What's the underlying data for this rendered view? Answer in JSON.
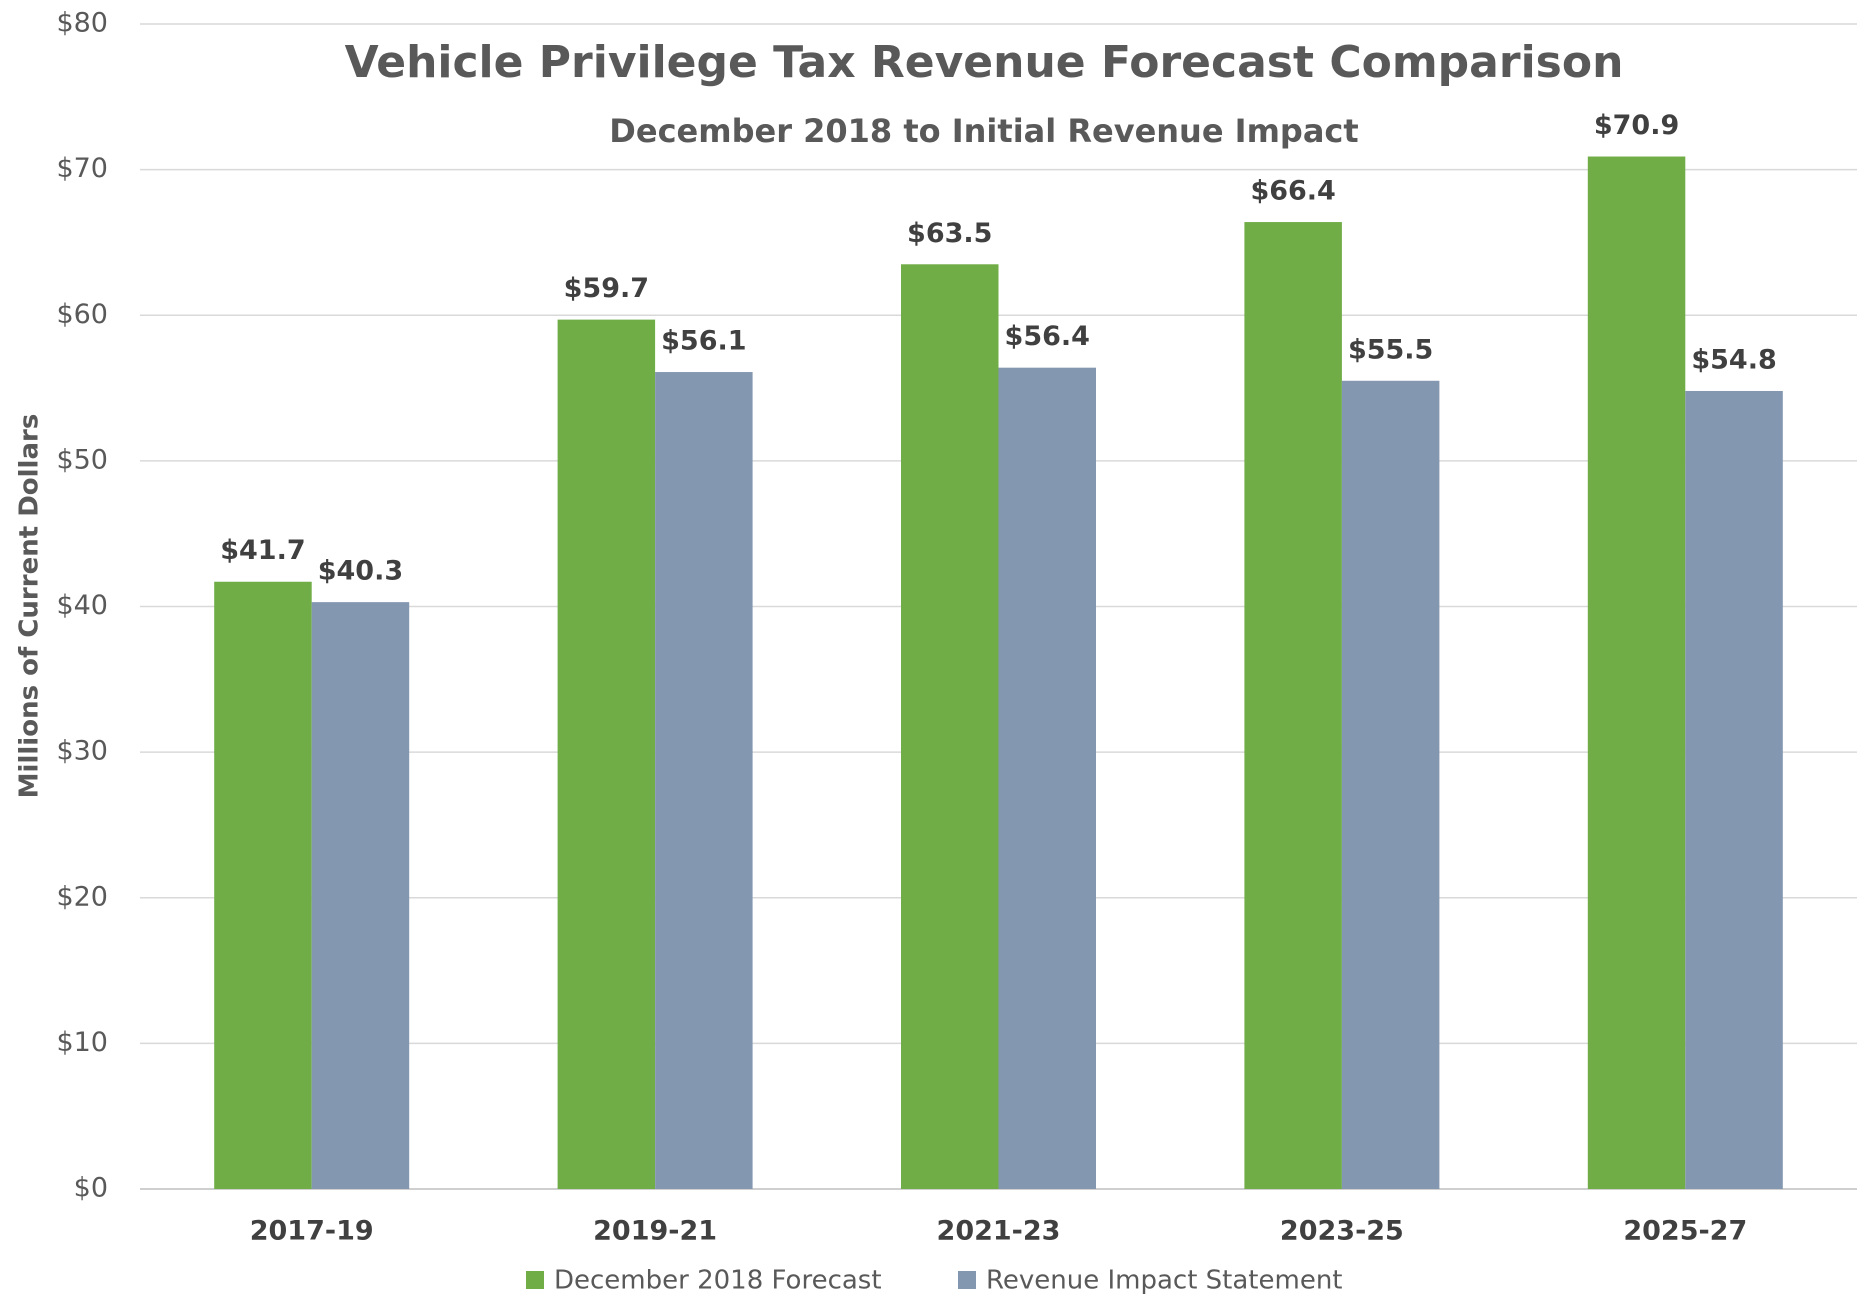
{
  "chart_data": {
    "type": "bar",
    "title": "Vehicle Privilege Tax Revenue Forecast Comparison",
    "subtitle": "December 2018 to Initial Revenue Impact",
    "y_label": "Millions of Current Dollars",
    "categories": [
      "2017-19",
      "2019-21",
      "2021-23",
      "2023-25",
      "2025-27"
    ],
    "series": [
      {
        "name": "December 2018 Forecast",
        "color": "#70ad47",
        "values": [
          41.7,
          59.7,
          63.5,
          66.4,
          70.9
        ],
        "value_labels": [
          "$41.7",
          "$59.7",
          "$63.5",
          "$66.4",
          "$70.9"
        ]
      },
      {
        "name": "Revenue Impact Statement",
        "color": "#8497b0",
        "values": [
          40.3,
          56.1,
          56.4,
          55.5,
          54.8
        ],
        "value_labels": [
          "$40.3",
          "$56.1",
          "$56.4",
          "$55.5",
          "$54.8"
        ]
      }
    ],
    "ylim": [
      0,
      80
    ],
    "yticks": [
      {
        "value": 0,
        "label": "$0"
      },
      {
        "value": 10,
        "label": "$10"
      },
      {
        "value": 20,
        "label": "$20"
      },
      {
        "value": 30,
        "label": "$30"
      },
      {
        "value": 40,
        "label": "$40"
      },
      {
        "value": 50,
        "label": "$50"
      },
      {
        "value": 60,
        "label": "$60"
      },
      {
        "value": 70,
        "label": "$70"
      },
      {
        "value": 80,
        "label": "$80"
      }
    ],
    "grid": true,
    "legend": "bottom"
  }
}
